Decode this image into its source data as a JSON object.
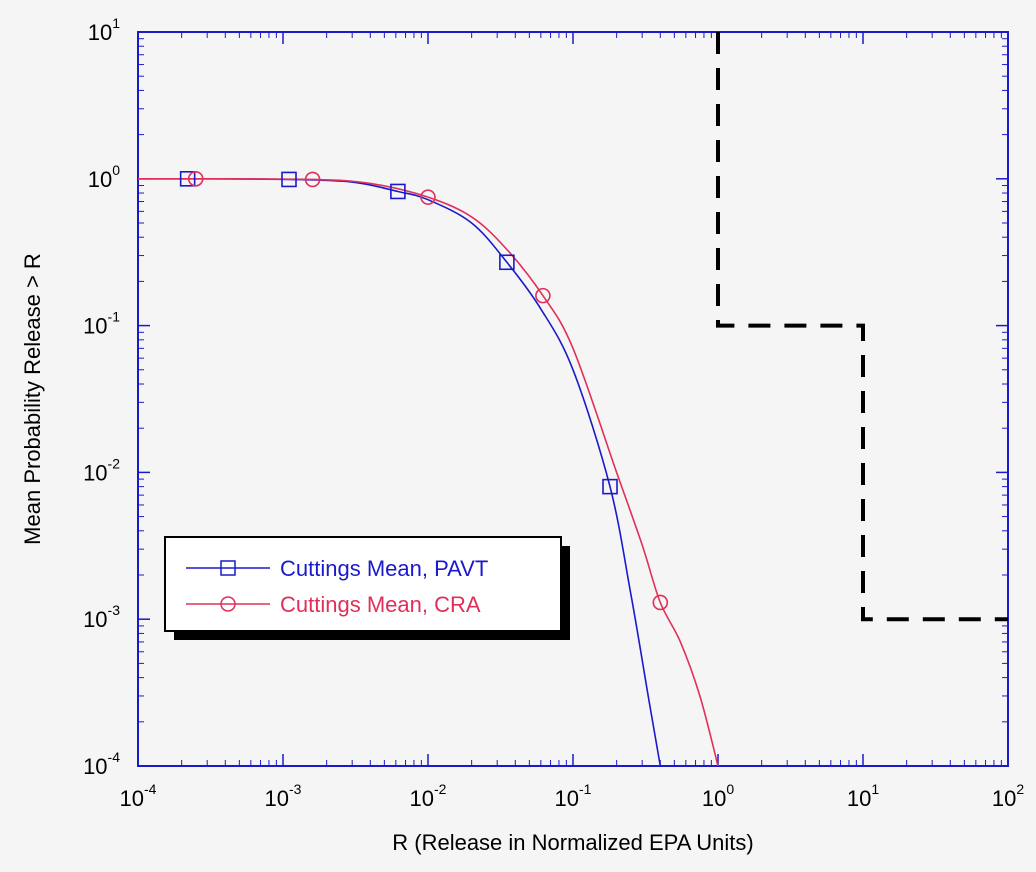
{
  "chart_data": {
    "type": "line",
    "xscale": "log",
    "yscale": "log",
    "xlabel": "R (Release in Normalized EPA Units)",
    "ylabel": "Mean Probability Release > R",
    "xlim": [
      0.0001,
      100
    ],
    "ylim": [
      0.0001,
      10
    ],
    "x_ticks": [
      {
        "base": "10",
        "exp": "-4",
        "value": 0.0001
      },
      {
        "base": "10",
        "exp": "-3",
        "value": 0.001
      },
      {
        "base": "10",
        "exp": "-2",
        "value": 0.01
      },
      {
        "base": "10",
        "exp": "-1",
        "value": 0.1
      },
      {
        "base": "10",
        "exp": "0",
        "value": 1
      },
      {
        "base": "10",
        "exp": "1",
        "value": 10
      },
      {
        "base": "10",
        "exp": "2",
        "value": 100
      }
    ],
    "y_ticks": [
      {
        "base": "10",
        "exp": "-4",
        "value": 0.0001
      },
      {
        "base": "10",
        "exp": "-3",
        "value": 0.001
      },
      {
        "base": "10",
        "exp": "-2",
        "value": 0.01
      },
      {
        "base": "10",
        "exp": "-1",
        "value": 0.1
      },
      {
        "base": "10",
        "exp": "0",
        "value": 1
      },
      {
        "base": "10",
        "exp": "1",
        "value": 10
      }
    ],
    "series": [
      {
        "name": "Cuttings Mean, PAVT",
        "color": "#1a1acc",
        "marker": "square",
        "x": [
          0.0001,
          0.00022,
          0.0011,
          0.003,
          0.0062,
          0.01,
          0.02,
          0.035,
          0.06,
          0.1,
          0.18,
          0.25,
          0.33,
          0.4
        ],
        "y": [
          1.0,
          1.0,
          0.99,
          0.95,
          0.82,
          0.72,
          0.5,
          0.27,
          0.13,
          0.05,
          0.008,
          0.0015,
          0.0003,
          0.0001
        ],
        "marker_x": [
          0.00022,
          0.0011,
          0.0062,
          0.035,
          0.18
        ],
        "marker_y": [
          1.0,
          0.99,
          0.82,
          0.27,
          0.008
        ]
      },
      {
        "name": "Cuttings Mean, CRA",
        "color": "#e0305a",
        "marker": "circle",
        "x": [
          0.0001,
          0.00025,
          0.0016,
          0.004,
          0.01,
          0.02,
          0.035,
          0.062,
          0.1,
          0.2,
          0.3,
          0.4,
          0.55,
          0.75,
          1.0
        ],
        "y": [
          1.0,
          1.0,
          0.99,
          0.93,
          0.75,
          0.55,
          0.33,
          0.16,
          0.07,
          0.01,
          0.0032,
          0.0013,
          0.0007,
          0.0003,
          0.0001
        ],
        "marker_x": [
          0.00025,
          0.0016,
          0.01,
          0.062,
          0.4
        ],
        "marker_y": [
          1.0,
          0.99,
          0.75,
          0.16,
          0.0013
        ]
      }
    ],
    "limit_line": {
      "color": "#000000",
      "style": "dashed",
      "x": [
        1,
        1,
        10,
        10,
        100
      ],
      "y": [
        10,
        0.1,
        0.1,
        0.001,
        0.001
      ]
    },
    "legend": {
      "position": "lower-left"
    },
    "grid": false
  }
}
